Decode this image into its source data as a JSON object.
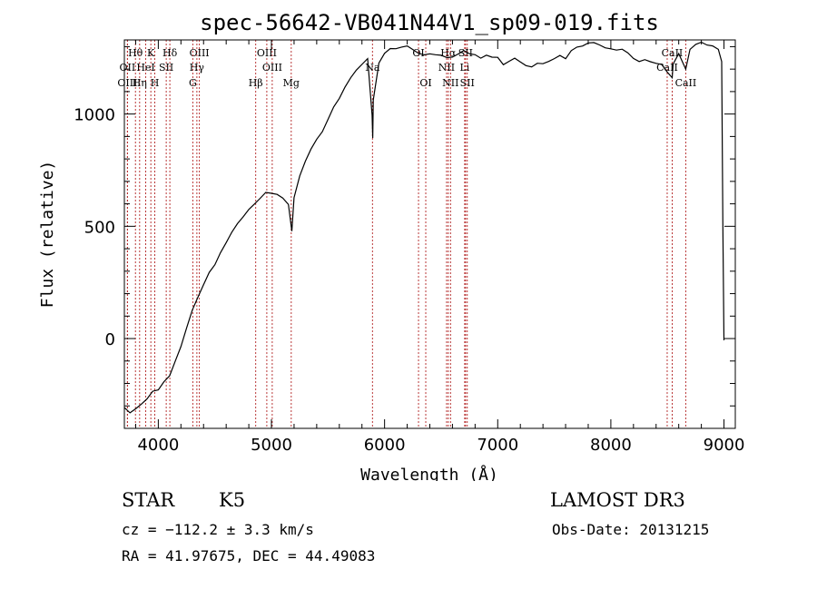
{
  "chart_data": {
    "type": "line",
    "title": "spec-56642-VB041N44V1_sp09-019.fits",
    "xlabel": "Wavelength (Å)",
    "ylabel": "Flux (relative)",
    "xlim": [
      3700,
      9100
    ],
    "ylim": [
      -400,
      1330
    ],
    "x_ticks": [
      4000,
      5000,
      6000,
      7000,
      8000,
      9000
    ],
    "y_ticks": [
      0,
      500,
      1000
    ],
    "x_tick_labels": [
      "4000",
      "5000",
      "6000",
      "7000",
      "8000",
      "9000"
    ],
    "y_tick_labels": [
      "0",
      "500",
      "1000"
    ],
    "grid": false,
    "series": [
      {
        "name": "flux",
        "x": [
          3700,
          3750,
          3800,
          3850,
          3900,
          3950,
          4000,
          4050,
          4100,
          4150,
          4200,
          4250,
          4300,
          4350,
          4400,
          4450,
          4500,
          4550,
          4600,
          4650,
          4700,
          4750,
          4800,
          4850,
          4900,
          4950,
          5000,
          5050,
          5100,
          5150,
          5180,
          5200,
          5250,
          5300,
          5350,
          5400,
          5450,
          5500,
          5550,
          5600,
          5650,
          5700,
          5750,
          5800,
          5850,
          5890,
          5895,
          5900,
          5950,
          6000,
          6050,
          6100,
          6150,
          6200,
          6250,
          6300,
          6350,
          6400,
          6450,
          6500,
          6550,
          6563,
          6600,
          6650,
          6700,
          6750,
          6800,
          6850,
          6900,
          6950,
          7000,
          7050,
          7100,
          7150,
          7200,
          7250,
          7300,
          7350,
          7400,
          7450,
          7500,
          7550,
          7600,
          7650,
          7700,
          7750,
          7800,
          7850,
          7900,
          7950,
          8000,
          8050,
          8100,
          8150,
          8200,
          8250,
          8300,
          8350,
          8400,
          8450,
          8500,
          8542,
          8550,
          8600,
          8662,
          8700,
          8750,
          8800,
          8850,
          8900,
          8950,
          8980,
          8990,
          9000
        ],
        "y": [
          -300,
          -320,
          -300,
          -280,
          -260,
          -230,
          -230,
          -200,
          -180,
          -120,
          -60,
          20,
          100,
          160,
          220,
          280,
          320,
          380,
          430,
          480,
          520,
          550,
          580,
          600,
          620,
          640,
          630,
          620,
          600,
          570,
          480,
          600,
          700,
          770,
          830,
          880,
          920,
          980,
          1040,
          1080,
          1130,
          1170,
          1200,
          1220,
          1240,
          1000,
          870,
          1050,
          1210,
          1250,
          1270,
          1270,
          1280,
          1290,
          1280,
          1270,
          1270,
          1280,
          1280,
          1280,
          1270,
          1240,
          1270,
          1280,
          1290,
          1270,
          1260,
          1240,
          1250,
          1240,
          1240,
          1210,
          1230,
          1250,
          1240,
          1230,
          1230,
          1250,
          1250,
          1260,
          1270,
          1280,
          1260,
          1290,
          1300,
          1300,
          1310,
          1310,
          1300,
          1290,
          1290,
          1290,
          1300,
          1290,
          1270,
          1260,
          1270,
          1260,
          1250,
          1240,
          1200,
          1150,
          1230,
          1270,
          1200,
          1280,
          1300,
          1310,
          1300,
          1300,
          1290,
          1250,
          500,
          0
        ]
      }
    ],
    "line_markers": [
      {
        "label": "Hθ",
        "x": 3798,
        "row": 1
      },
      {
        "label": "OII",
        "x": 3727,
        "row": 2
      },
      {
        "label": "OIII",
        "x": 3727,
        "row": 3
      },
      {
        "label": "K",
        "x": 3934,
        "row": 1
      },
      {
        "label": "HeI",
        "x": 3889,
        "row": 2
      },
      {
        "label": "Hη",
        "x": 3835,
        "row": 3
      },
      {
        "label": "SII",
        "x": 4070,
        "row": 2
      },
      {
        "label": "H",
        "x": 3969,
        "row": 3
      },
      {
        "label": "Hδ",
        "x": 4102,
        "row": 1
      },
      {
        "label": "OIII",
        "x": 4363,
        "row": 1
      },
      {
        "label": "Hγ",
        "x": 4341,
        "row": 2
      },
      {
        "label": "G",
        "x": 4305,
        "row": 3
      },
      {
        "label": "OIII",
        "x": 4959,
        "row": 1
      },
      {
        "label": "OIII",
        "x": 5007,
        "row": 2
      },
      {
        "label": "Hβ",
        "x": 4861,
        "row": 3
      },
      {
        "label": "Mg",
        "x": 5175,
        "row": 3
      },
      {
        "label": "Na",
        "x": 5893,
        "row": 2
      },
      {
        "label": "OI",
        "x": 6300,
        "row": 1
      },
      {
        "label": "OI",
        "x": 6364,
        "row": 3
      },
      {
        "label": "Hα",
        "x": 6563,
        "row": 1
      },
      {
        "label": "SII",
        "x": 6716,
        "row": 1
      },
      {
        "label": "NII",
        "x": 6548,
        "row": 2
      },
      {
        "label": "Li",
        "x": 6708,
        "row": 2
      },
      {
        "label": "NII",
        "x": 6583,
        "row": 3
      },
      {
        "label": "SII",
        "x": 6731,
        "row": 3
      },
      {
        "label": "CaII",
        "x": 8542,
        "row": 1
      },
      {
        "label": "CaII",
        "x": 8498,
        "row": 2
      },
      {
        "label": "CaII",
        "x": 8662,
        "row": 3
      }
    ]
  },
  "info": {
    "object_class": "STAR",
    "subclass": "K5",
    "survey": "LAMOST DR3",
    "cz": "cz = −112.2 ± 3.3 km/s",
    "obs_date": "Obs-Date: 20131215",
    "coords": "RA =  41.97675, DEC =  44.49083"
  }
}
